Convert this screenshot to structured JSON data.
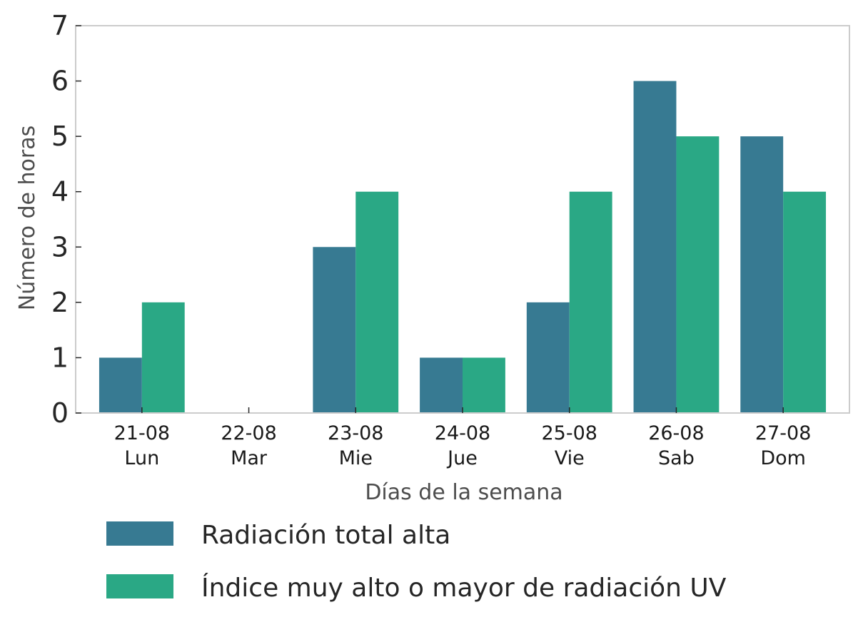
{
  "chart_data": {
    "type": "bar",
    "categories": [
      [
        "21-08",
        "Lun"
      ],
      [
        "22-08",
        "Mar"
      ],
      [
        "23-08",
        "Mie"
      ],
      [
        "24-08",
        "Jue"
      ],
      [
        "25-08",
        "Vie"
      ],
      [
        "26-08",
        "Sab"
      ],
      [
        "27-08",
        "Dom"
      ]
    ],
    "series": [
      {
        "name": "Radiación total alta",
        "values": [
          1,
          0,
          3,
          1,
          2,
          6,
          5
        ],
        "color": "#377a92"
      },
      {
        "name": "Índice muy alto o mayor de radiación UV",
        "values": [
          2,
          0,
          4,
          1,
          4,
          5,
          4
        ],
        "color": "#2aa885"
      }
    ],
    "xlabel": "Días de la semana",
    "ylabel": "Número de horas",
    "ylim": [
      0,
      7
    ],
    "yticks": [
      0,
      1,
      2,
      3,
      4,
      5,
      6,
      7
    ],
    "grid": false,
    "legend_position": "bottom-left"
  }
}
